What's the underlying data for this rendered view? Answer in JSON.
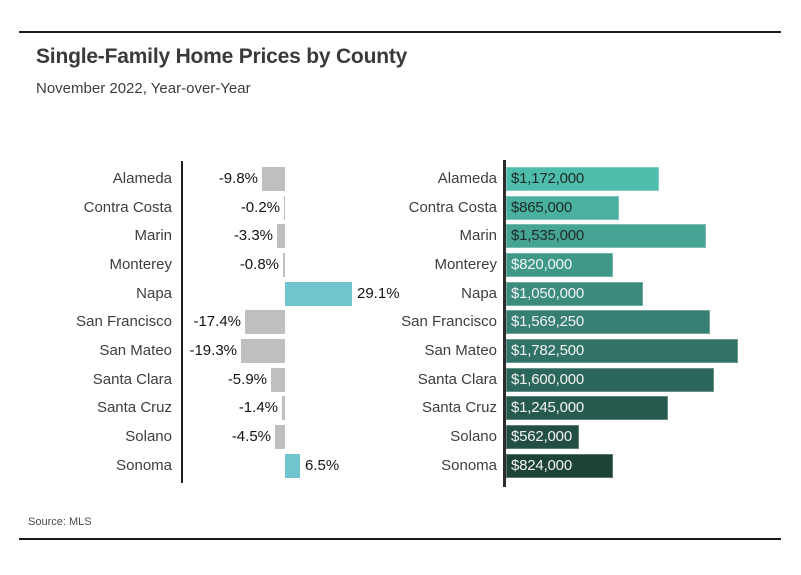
{
  "page": {
    "title": "Single-Family Home Prices by County",
    "subtitle": "November 2022, Year-over-Year",
    "source": "Source: MLS"
  },
  "colors": {
    "negative_bar": "#bfbfbf",
    "positive_bar": "#6fc4cd",
    "axis_line": "#1f1f1f",
    "dark_value_text": "#1d2a26",
    "light_value_text": "#f2f4f3",
    "county_label_text": "#3e3e3e"
  },
  "chart_data": [
    {
      "type": "bar",
      "name": "yoy-percent-change",
      "orientation": "horizontal",
      "grid": false,
      "legend": "none",
      "baseline": 0,
      "categories": [
        "Alameda",
        "Contra Costa",
        "Marin",
        "Monterey",
        "Napa",
        "San Francisco",
        "San Mateo",
        "Santa Clara",
        "Santa Cruz",
        "Solano",
        "Sonoma"
      ],
      "values": [
        -9.8,
        -0.2,
        -3.3,
        -0.8,
        29.1,
        -17.4,
        -19.3,
        -5.9,
        -1.4,
        -4.5,
        6.5
      ],
      "value_labels": [
        "-9.8%",
        "-0.2%",
        "-3.3%",
        "-0.8%",
        "29.1%",
        "-17.4%",
        "-19.3%",
        "-5.9%",
        "-1.4%",
        "-4.5%",
        "6.5%"
      ]
    },
    {
      "type": "bar",
      "name": "median-price-dollars",
      "orientation": "horizontal",
      "grid": false,
      "legend": "none",
      "categories": [
        "Alameda",
        "Contra Costa",
        "Marin",
        "Monterey",
        "Napa",
        "San Francisco",
        "San Mateo",
        "Santa Clara",
        "Santa Cruz",
        "Solano",
        "Sonoma"
      ],
      "values": [
        1172000,
        865000,
        1535000,
        820000,
        1050000,
        1569250,
        1782500,
        1600000,
        1245000,
        562000,
        824000
      ],
      "value_labels": [
        "$1,172,000",
        "$865,000",
        "$1,535,000",
        "$820,000",
        "$1,050,000",
        "$1,569,250",
        "$1,782,500",
        "$1,600,000",
        "$1,245,000",
        "$562,000",
        "$824,000"
      ],
      "bar_colors": [
        "#4fbdab",
        "#4ab1a0",
        "#45a494",
        "#409889",
        "#3b8c7d",
        "#367f72",
        "#317366",
        "#2c675b",
        "#275a4f",
        "#224e44",
        "#1d4238"
      ],
      "value_label_on_dark": [
        false,
        false,
        false,
        true,
        true,
        true,
        true,
        true,
        true,
        true,
        true
      ]
    }
  ]
}
